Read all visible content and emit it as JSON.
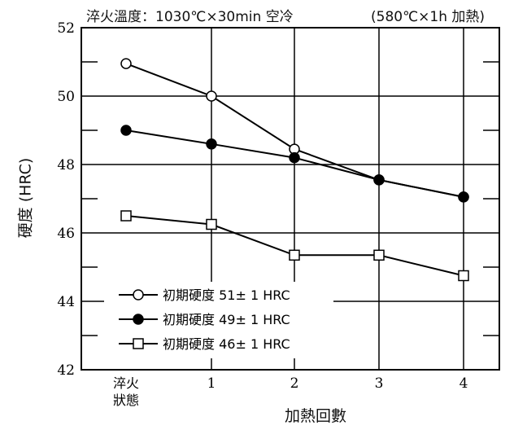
{
  "chart_data": {
    "type": "line",
    "header_left": "淬火溫度：1030℃×30min 空冷",
    "header_right": "(580℃×1h 加熱)",
    "xlabel": "加熱回數",
    "ylabel": "硬度 (HRC)",
    "categories": [
      "淬火\n狀態",
      "1",
      "2",
      "3",
      "4"
    ],
    "ylim": [
      42,
      52
    ],
    "yticks": [
      42,
      44,
      46,
      48,
      50,
      52
    ],
    "grid": true,
    "legend_position": "bottom-left",
    "series": [
      {
        "name": "初期硬度 51± 1 HRC",
        "marker": "open-circle",
        "values": [
          50.95,
          50.0,
          48.45,
          47.55,
          47.05
        ]
      },
      {
        "name": "初期硬度 49± 1 HRC",
        "marker": "filled-circle",
        "values": [
          49.0,
          48.6,
          48.2,
          47.55,
          47.05
        ]
      },
      {
        "name": "初期硬度 46± 1 HRC",
        "marker": "open-square",
        "values": [
          46.5,
          46.25,
          45.35,
          45.35,
          44.75
        ]
      }
    ]
  }
}
